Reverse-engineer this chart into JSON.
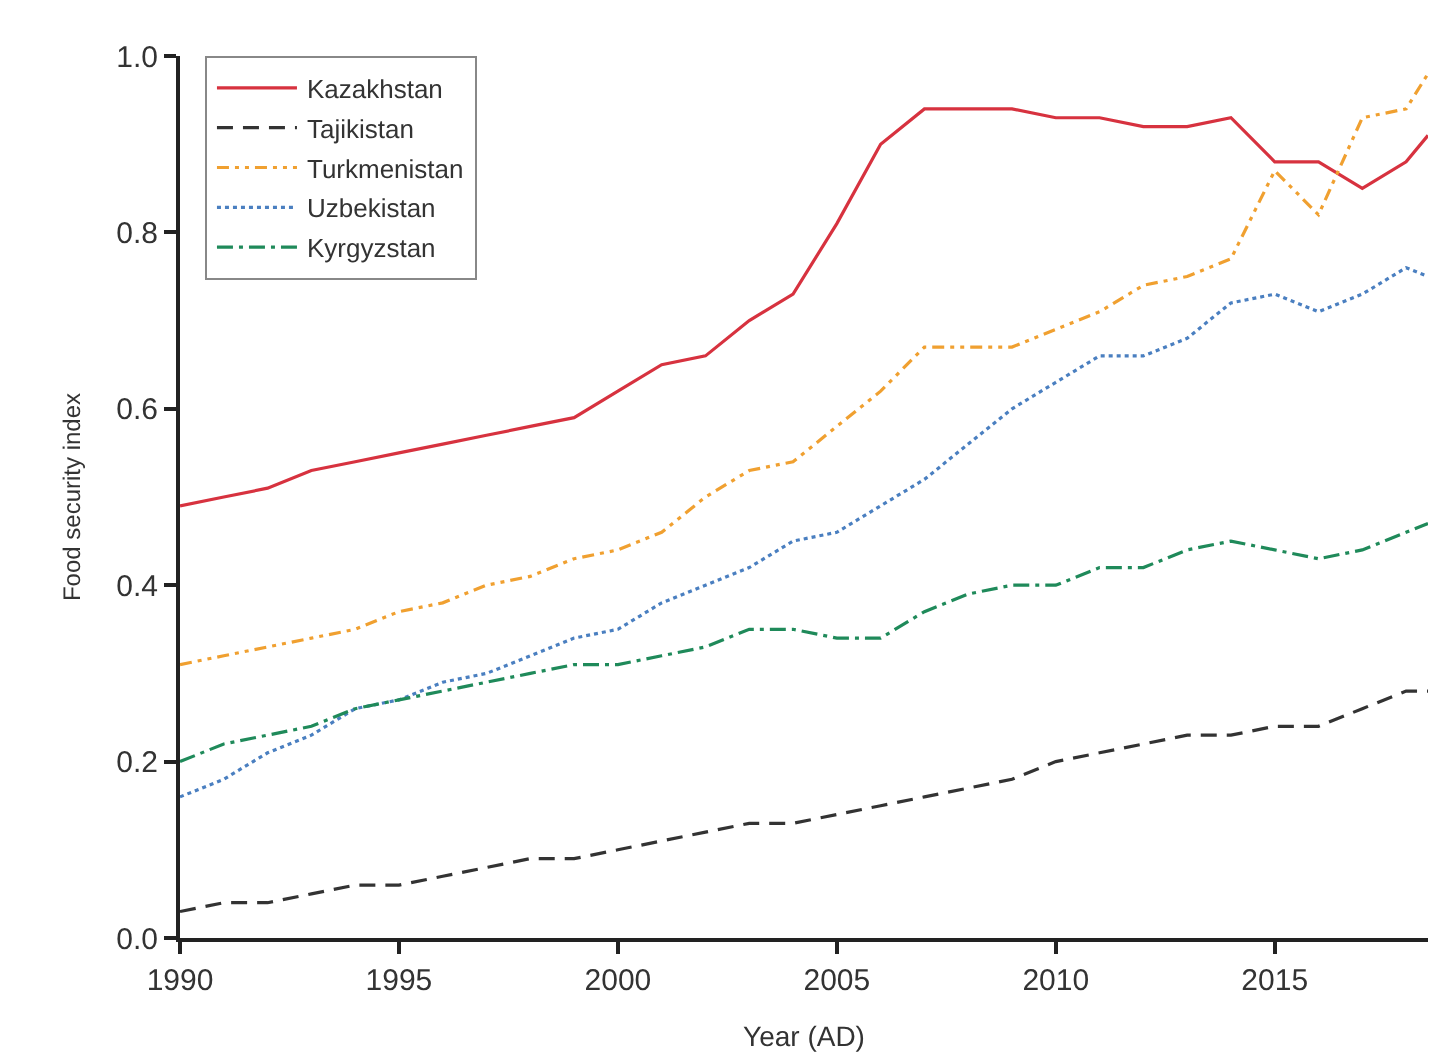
{
  "chart_data": {
    "type": "line",
    "xlabel": "Year (AD)",
    "ylabel": "Food security index",
    "x": [
      1990,
      1991,
      1992,
      1993,
      1994,
      1995,
      1996,
      1997,
      1998,
      1999,
      2000,
      2001,
      2002,
      2003,
      2004,
      2005,
      2006,
      2007,
      2008,
      2009,
      2010,
      2011,
      2012,
      2013,
      2014,
      2015,
      2016,
      2017,
      2018,
      2018.5
    ],
    "series": [
      {
        "name": "Kazakhstan",
        "color": "#d7323f",
        "line_style": "solid",
        "values": [
          0.49,
          0.5,
          0.51,
          0.53,
          0.54,
          0.55,
          0.56,
          0.57,
          0.58,
          0.59,
          0.62,
          0.65,
          0.66,
          0.7,
          0.73,
          0.81,
          0.9,
          0.94,
          0.94,
          0.94,
          0.93,
          0.93,
          0.92,
          0.92,
          0.93,
          0.88,
          0.88,
          0.85,
          0.88,
          0.91
        ]
      },
      {
        "name": "Tajikistan",
        "color": "#333333",
        "line_style": "dashed",
        "values": [
          0.03,
          0.04,
          0.04,
          0.05,
          0.06,
          0.06,
          0.07,
          0.08,
          0.09,
          0.09,
          0.1,
          0.11,
          0.12,
          0.13,
          0.13,
          0.14,
          0.15,
          0.16,
          0.17,
          0.18,
          0.2,
          0.21,
          0.22,
          0.23,
          0.23,
          0.24,
          0.24,
          0.26,
          0.28,
          0.28
        ]
      },
      {
        "name": "Turkmenistan",
        "color": "#f0a030",
        "line_style": "dashdotdot",
        "values": [
          0.31,
          0.32,
          0.33,
          0.34,
          0.35,
          0.37,
          0.38,
          0.4,
          0.41,
          0.43,
          0.44,
          0.46,
          0.5,
          0.53,
          0.54,
          0.58,
          0.62,
          0.67,
          0.67,
          0.67,
          0.69,
          0.71,
          0.74,
          0.75,
          0.77,
          0.87,
          0.82,
          0.93,
          0.94,
          0.98
        ]
      },
      {
        "name": "Uzbekistan",
        "color": "#4a7fc0",
        "line_style": "dotted",
        "values": [
          0.16,
          0.18,
          0.21,
          0.23,
          0.26,
          0.27,
          0.29,
          0.3,
          0.32,
          0.34,
          0.35,
          0.38,
          0.4,
          0.42,
          0.45,
          0.46,
          0.49,
          0.52,
          0.56,
          0.6,
          0.63,
          0.66,
          0.66,
          0.68,
          0.72,
          0.73,
          0.71,
          0.73,
          0.76,
          0.75
        ]
      },
      {
        "name": "Kyrgyzstan",
        "color": "#1f8a5a",
        "line_style": "dashdot",
        "values": [
          0.2,
          0.22,
          0.23,
          0.24,
          0.26,
          0.27,
          0.28,
          0.29,
          0.3,
          0.31,
          0.31,
          0.32,
          0.33,
          0.35,
          0.35,
          0.34,
          0.34,
          0.37,
          0.39,
          0.4,
          0.4,
          0.42,
          0.42,
          0.44,
          0.45,
          0.44,
          0.43,
          0.44,
          0.46,
          0.47
        ]
      }
    ],
    "xlim": [
      1990,
      2018.5
    ],
    "xticks": [
      1990,
      1995,
      2000,
      2005,
      2010,
      2015
    ],
    "ylim": [
      0,
      1.0
    ],
    "yticks": [
      {
        "value": 0,
        "label": "0.0"
      },
      {
        "value": 0.2,
        "label": "0.2"
      },
      {
        "value": 0.4,
        "label": "0.4"
      },
      {
        "value": 0.6,
        "label": "0.6"
      },
      {
        "value": 0.8,
        "label": "0.8"
      },
      {
        "value": 1.0,
        "label": "1.0"
      }
    ],
    "legend": "top left",
    "marker": "none"
  }
}
